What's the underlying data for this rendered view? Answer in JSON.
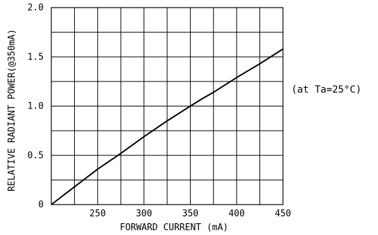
{
  "chart_data": {
    "type": "line",
    "title": "",
    "xlabel": "FORWARD CURRENT (mA)",
    "ylabel": "RELATIVE RADIANT POWER(@350mA)",
    "annotation": "(at Ta=25°C)",
    "xlim": [
      200,
      450
    ],
    "ylim": [
      0,
      2.0
    ],
    "x_ticks": [
      250,
      300,
      350,
      400,
      450
    ],
    "y_ticks": [
      0,
      0.5,
      1.0,
      1.5,
      2.0
    ],
    "x_tick_labels": [
      "250",
      "300",
      "350",
      "400",
      "450"
    ],
    "y_tick_labels": [
      "0",
      "0.5",
      "1.0",
      "1.5",
      "2.0"
    ],
    "x_grid_step": 25,
    "y_grid_step": 0.25,
    "grid": true,
    "series": [
      {
        "x": [
          200,
          225,
          250,
          275,
          300,
          325,
          350,
          362,
          375,
          400,
          425,
          450
        ],
        "y": [
          0.0,
          0.18,
          0.36,
          0.52,
          0.69,
          0.85,
          1.0,
          1.07,
          1.14,
          1.29,
          1.43,
          1.58
        ]
      }
    ]
  }
}
